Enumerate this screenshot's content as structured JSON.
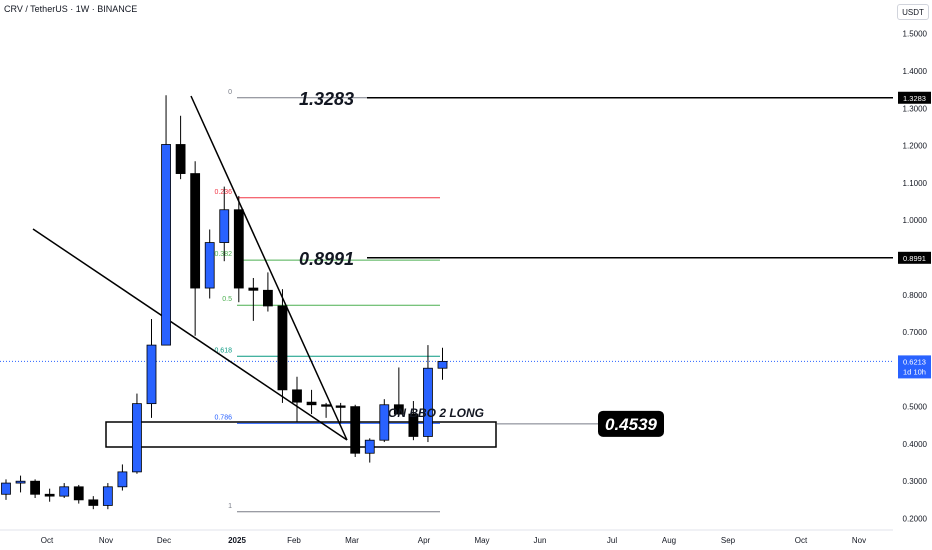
{
  "header": {
    "title": "CRV / TetherUS · 1W · BINANCE",
    "currency": "USDT"
  },
  "chart_data": {
    "type": "candlestick",
    "ylim": [
      0.19,
      1.55
    ],
    "y_ticks": [
      "1.5000",
      "1.4000",
      "1.3000",
      "1.2000",
      "1.1000",
      "1.0000",
      "0.9000",
      "0.8000",
      "0.7000",
      "0.6000",
      "0.5000",
      "0.4000",
      "0.3000",
      "0.2000"
    ],
    "x_ticks": [
      "Oct",
      "Nov",
      "Dec",
      "2025",
      "Feb",
      "Mar",
      "Apr",
      "May",
      "Jun",
      "Jul",
      "Aug",
      "Sep",
      "Oct",
      "Nov"
    ],
    "candles": [
      {
        "o": 0.265,
        "h": 0.305,
        "l": 0.25,
        "c": 0.295
      },
      {
        "o": 0.295,
        "h": 0.315,
        "l": 0.27,
        "c": 0.3
      },
      {
        "o": 0.3,
        "h": 0.305,
        "l": 0.255,
        "c": 0.265
      },
      {
        "o": 0.265,
        "h": 0.28,
        "l": 0.245,
        "c": 0.26
      },
      {
        "o": 0.26,
        "h": 0.295,
        "l": 0.255,
        "c": 0.285
      },
      {
        "o": 0.285,
        "h": 0.29,
        "l": 0.24,
        "c": 0.25
      },
      {
        "o": 0.25,
        "h": 0.26,
        "l": 0.225,
        "c": 0.235
      },
      {
        "o": 0.235,
        "h": 0.295,
        "l": 0.225,
        "c": 0.285
      },
      {
        "o": 0.285,
        "h": 0.345,
        "l": 0.275,
        "c": 0.325
      },
      {
        "o": 0.325,
        "h": 0.535,
        "l": 0.32,
        "c": 0.508
      },
      {
        "o": 0.508,
        "h": 0.735,
        "l": 0.47,
        "c": 0.665
      },
      {
        "o": 0.665,
        "h": 1.335,
        "l": 0.665,
        "c": 1.203
      },
      {
        "o": 1.203,
        "h": 1.28,
        "l": 1.11,
        "c": 1.125
      },
      {
        "o": 1.125,
        "h": 1.158,
        "l": 0.69,
        "c": 0.818
      },
      {
        "o": 0.818,
        "h": 0.975,
        "l": 0.79,
        "c": 0.94
      },
      {
        "o": 0.94,
        "h": 1.09,
        "l": 0.89,
        "c": 1.028
      },
      {
        "o": 1.028,
        "h": 1.065,
        "l": 0.78,
        "c": 0.818
      },
      {
        "o": 0.818,
        "h": 0.845,
        "l": 0.73,
        "c": 0.812
      },
      {
        "o": 0.812,
        "h": 0.86,
        "l": 0.755,
        "c": 0.77
      },
      {
        "o": 0.77,
        "h": 0.815,
        "l": 0.51,
        "c": 0.545
      },
      {
        "o": 0.545,
        "h": 0.58,
        "l": 0.46,
        "c": 0.512
      },
      {
        "o": 0.512,
        "h": 0.545,
        "l": 0.48,
        "c": 0.505
      },
      {
        "o": 0.505,
        "h": 0.51,
        "l": 0.47,
        "c": 0.502
      },
      {
        "o": 0.502,
        "h": 0.51,
        "l": 0.455,
        "c": 0.5
      },
      {
        "o": 0.5,
        "h": 0.505,
        "l": 0.365,
        "c": 0.375
      },
      {
        "o": 0.375,
        "h": 0.415,
        "l": 0.35,
        "c": 0.41
      },
      {
        "o": 0.41,
        "h": 0.52,
        "l": 0.405,
        "c": 0.505
      },
      {
        "o": 0.505,
        "h": 0.605,
        "l": 0.475,
        "c": 0.48
      },
      {
        "o": 0.48,
        "h": 0.515,
        "l": 0.41,
        "c": 0.42
      },
      {
        "o": 0.42,
        "h": 0.665,
        "l": 0.405,
        "c": 0.603
      },
      {
        "o": 0.603,
        "h": 0.658,
        "l": 0.572,
        "c": 0.6213
      }
    ],
    "fib_levels": [
      {
        "label": "0",
        "value": 1.3283
      },
      {
        "label": "0.236",
        "value": 1.06
      },
      {
        "label": "0.382",
        "value": 0.893
      },
      {
        "label": "0.5",
        "value": 0.772
      },
      {
        "label": "0.618",
        "value": 0.635
      },
      {
        "label": "0.786",
        "value": 0.455
      },
      {
        "label": "1",
        "value": 0.218
      }
    ],
    "levels": [
      {
        "label": "1.3283",
        "value": 1.3283
      },
      {
        "label": "0.8991",
        "value": 0.8991
      },
      {
        "label": "0.4539",
        "value": 0.4539
      }
    ],
    "current_price": {
      "value": "0.6213",
      "countdown": "1d 10h"
    },
    "annotation": "ON BBO 2 LONG",
    "colors": {
      "up": "#2962ff",
      "down": "#000000",
      "fib_0": "#787b86",
      "fib_0236": "#f23645",
      "fib_0382": "#4caf50",
      "fib_05": "#4caf50",
      "fib_0618": "#089981",
      "fib_0786": "#2962ff",
      "fib_1": "#787b86",
      "price_line": "#2962ff"
    }
  }
}
